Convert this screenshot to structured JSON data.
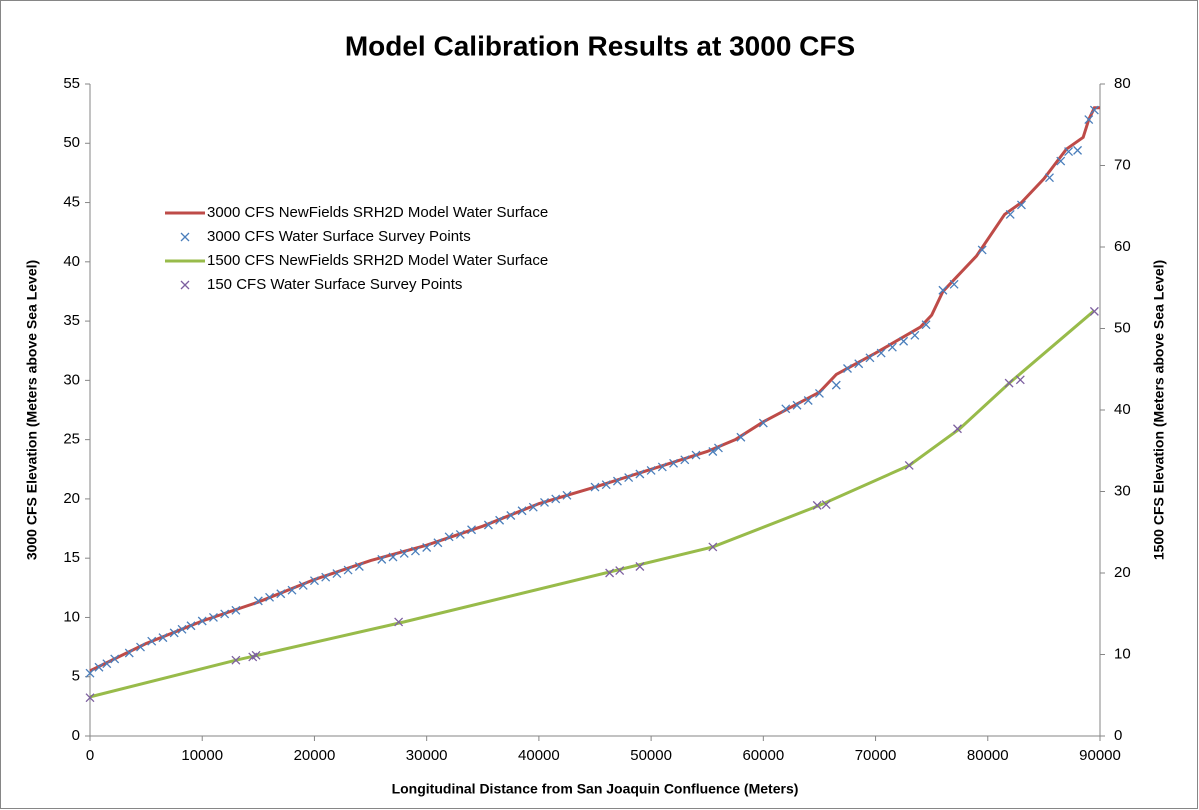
{
  "chart_data": {
    "type": "line",
    "title": "Model Calibration Results at 3000 CFS",
    "xlabel": "Longitudinal Distance from San Joaquin Confluence (Meters)",
    "ylabel": "3000 CFS Elevation (Meters above Sea Level)",
    "y2label": "1500 CFS Elevation (Meters above Sea Level)",
    "xlim": [
      0,
      90000
    ],
    "xticks": [
      0,
      10000,
      20000,
      30000,
      40000,
      50000,
      60000,
      70000,
      80000,
      90000
    ],
    "ylim": [
      0,
      55
    ],
    "yticks": [
      0,
      5,
      10,
      15,
      20,
      25,
      30,
      35,
      40,
      45,
      50,
      55
    ],
    "y2lim": [
      0,
      80
    ],
    "y2ticks": [
      0,
      10,
      20,
      30,
      40,
      50,
      60,
      70,
      80
    ],
    "grid": false,
    "legend": "upper left",
    "series": [
      {
        "name": "3000 CFS NewFields SRH2D Model Water Surface",
        "type": "line",
        "color": "#be4b48",
        "axis": "y",
        "x": [
          0,
          5000,
          10000,
          15000,
          20000,
          25000,
          30000,
          35000,
          40000,
          45000,
          50000,
          55000,
          57500,
          60000,
          65000,
          66500,
          70000,
          74000,
          75000,
          76000,
          79000,
          81500,
          83000,
          85000,
          87000,
          88500,
          89000,
          89500,
          90000
        ],
        "values": [
          5.5,
          7.8,
          9.7,
          11.3,
          13.2,
          14.8,
          16.1,
          17.7,
          19.6,
          21.0,
          22.5,
          24.0,
          25.0,
          26.5,
          29.0,
          30.5,
          32.3,
          34.5,
          35.5,
          37.5,
          40.5,
          44.0,
          45.0,
          47.0,
          49.5,
          50.5,
          52.0,
          53.0,
          53.0
        ]
      },
      {
        "name": "3000 CFS Water Surface Survey Points",
        "type": "scatter",
        "color": "#4a7ebb",
        "axis": "y",
        "x": [
          0,
          800,
          1500,
          2200,
          3500,
          4500,
          5500,
          6500,
          7500,
          8200,
          9000,
          10000,
          11000,
          12000,
          13000,
          15000,
          16000,
          17000,
          18000,
          19000,
          20000,
          21000,
          22000,
          23000,
          24000,
          26000,
          27000,
          28000,
          29000,
          30000,
          31000,
          32000,
          33000,
          34000,
          35500,
          36500,
          37500,
          38500,
          39500,
          40500,
          41500,
          42500,
          45000,
          46000,
          47000,
          48000,
          49000,
          50000,
          51000,
          52000,
          53000,
          54000,
          55500,
          56000,
          58000,
          60000,
          62000,
          63000,
          64000,
          65000,
          66500,
          67500,
          68500,
          69500,
          70500,
          71500,
          72500,
          73500,
          74500,
          76000,
          77000,
          79500,
          82000,
          83000,
          85500,
          86500,
          87200,
          88000,
          89000,
          89500
        ],
        "values": [
          5.3,
          5.8,
          6.1,
          6.5,
          7.0,
          7.5,
          8.0,
          8.3,
          8.7,
          9.0,
          9.3,
          9.7,
          10.0,
          10.3,
          10.6,
          11.4,
          11.7,
          12.0,
          12.3,
          12.7,
          13.1,
          13.4,
          13.7,
          14.0,
          14.3,
          14.9,
          15.1,
          15.4,
          15.6,
          15.9,
          16.3,
          16.8,
          17.0,
          17.4,
          17.8,
          18.2,
          18.6,
          19.0,
          19.3,
          19.7,
          20.0,
          20.3,
          21.0,
          21.2,
          21.5,
          21.8,
          22.1,
          22.4,
          22.7,
          23.0,
          23.3,
          23.7,
          24.0,
          24.3,
          25.2,
          26.4,
          27.6,
          27.9,
          28.3,
          28.9,
          29.6,
          31.0,
          31.4,
          31.9,
          32.3,
          32.8,
          33.3,
          33.8,
          34.7,
          37.6,
          38.1,
          41.0,
          44.0,
          44.8,
          47.1,
          48.5,
          49.3,
          49.4,
          52.0,
          52.8
        ]
      },
      {
        "name": "1500 CFS NewFields SRH2D Model Water Surface",
        "type": "line",
        "color": "#98bb4a",
        "axis": "y2",
        "x": [
          0,
          13000,
          28000,
          55500,
          65000,
          73000,
          77500,
          82000,
          89500
        ],
        "values": [
          4.8,
          9.3,
          14.0,
          23.2,
          28.3,
          33.2,
          37.7,
          43.4,
          52.2
        ]
      },
      {
        "name": "150 CFS Water Surface Survey Points",
        "type": "scatter",
        "color": "#7d60a0",
        "axis": "y2",
        "x": [
          0,
          13000,
          14500,
          14800,
          27500,
          46300,
          47200,
          49000,
          55500,
          64800,
          65600,
          73000,
          77300,
          81900,
          82900,
          89500
        ],
        "values": [
          4.7,
          9.3,
          9.7,
          9.9,
          14.0,
          20.0,
          20.3,
          20.8,
          23.2,
          28.3,
          28.4,
          33.2,
          37.7,
          43.3,
          43.7,
          52.1
        ]
      }
    ]
  }
}
